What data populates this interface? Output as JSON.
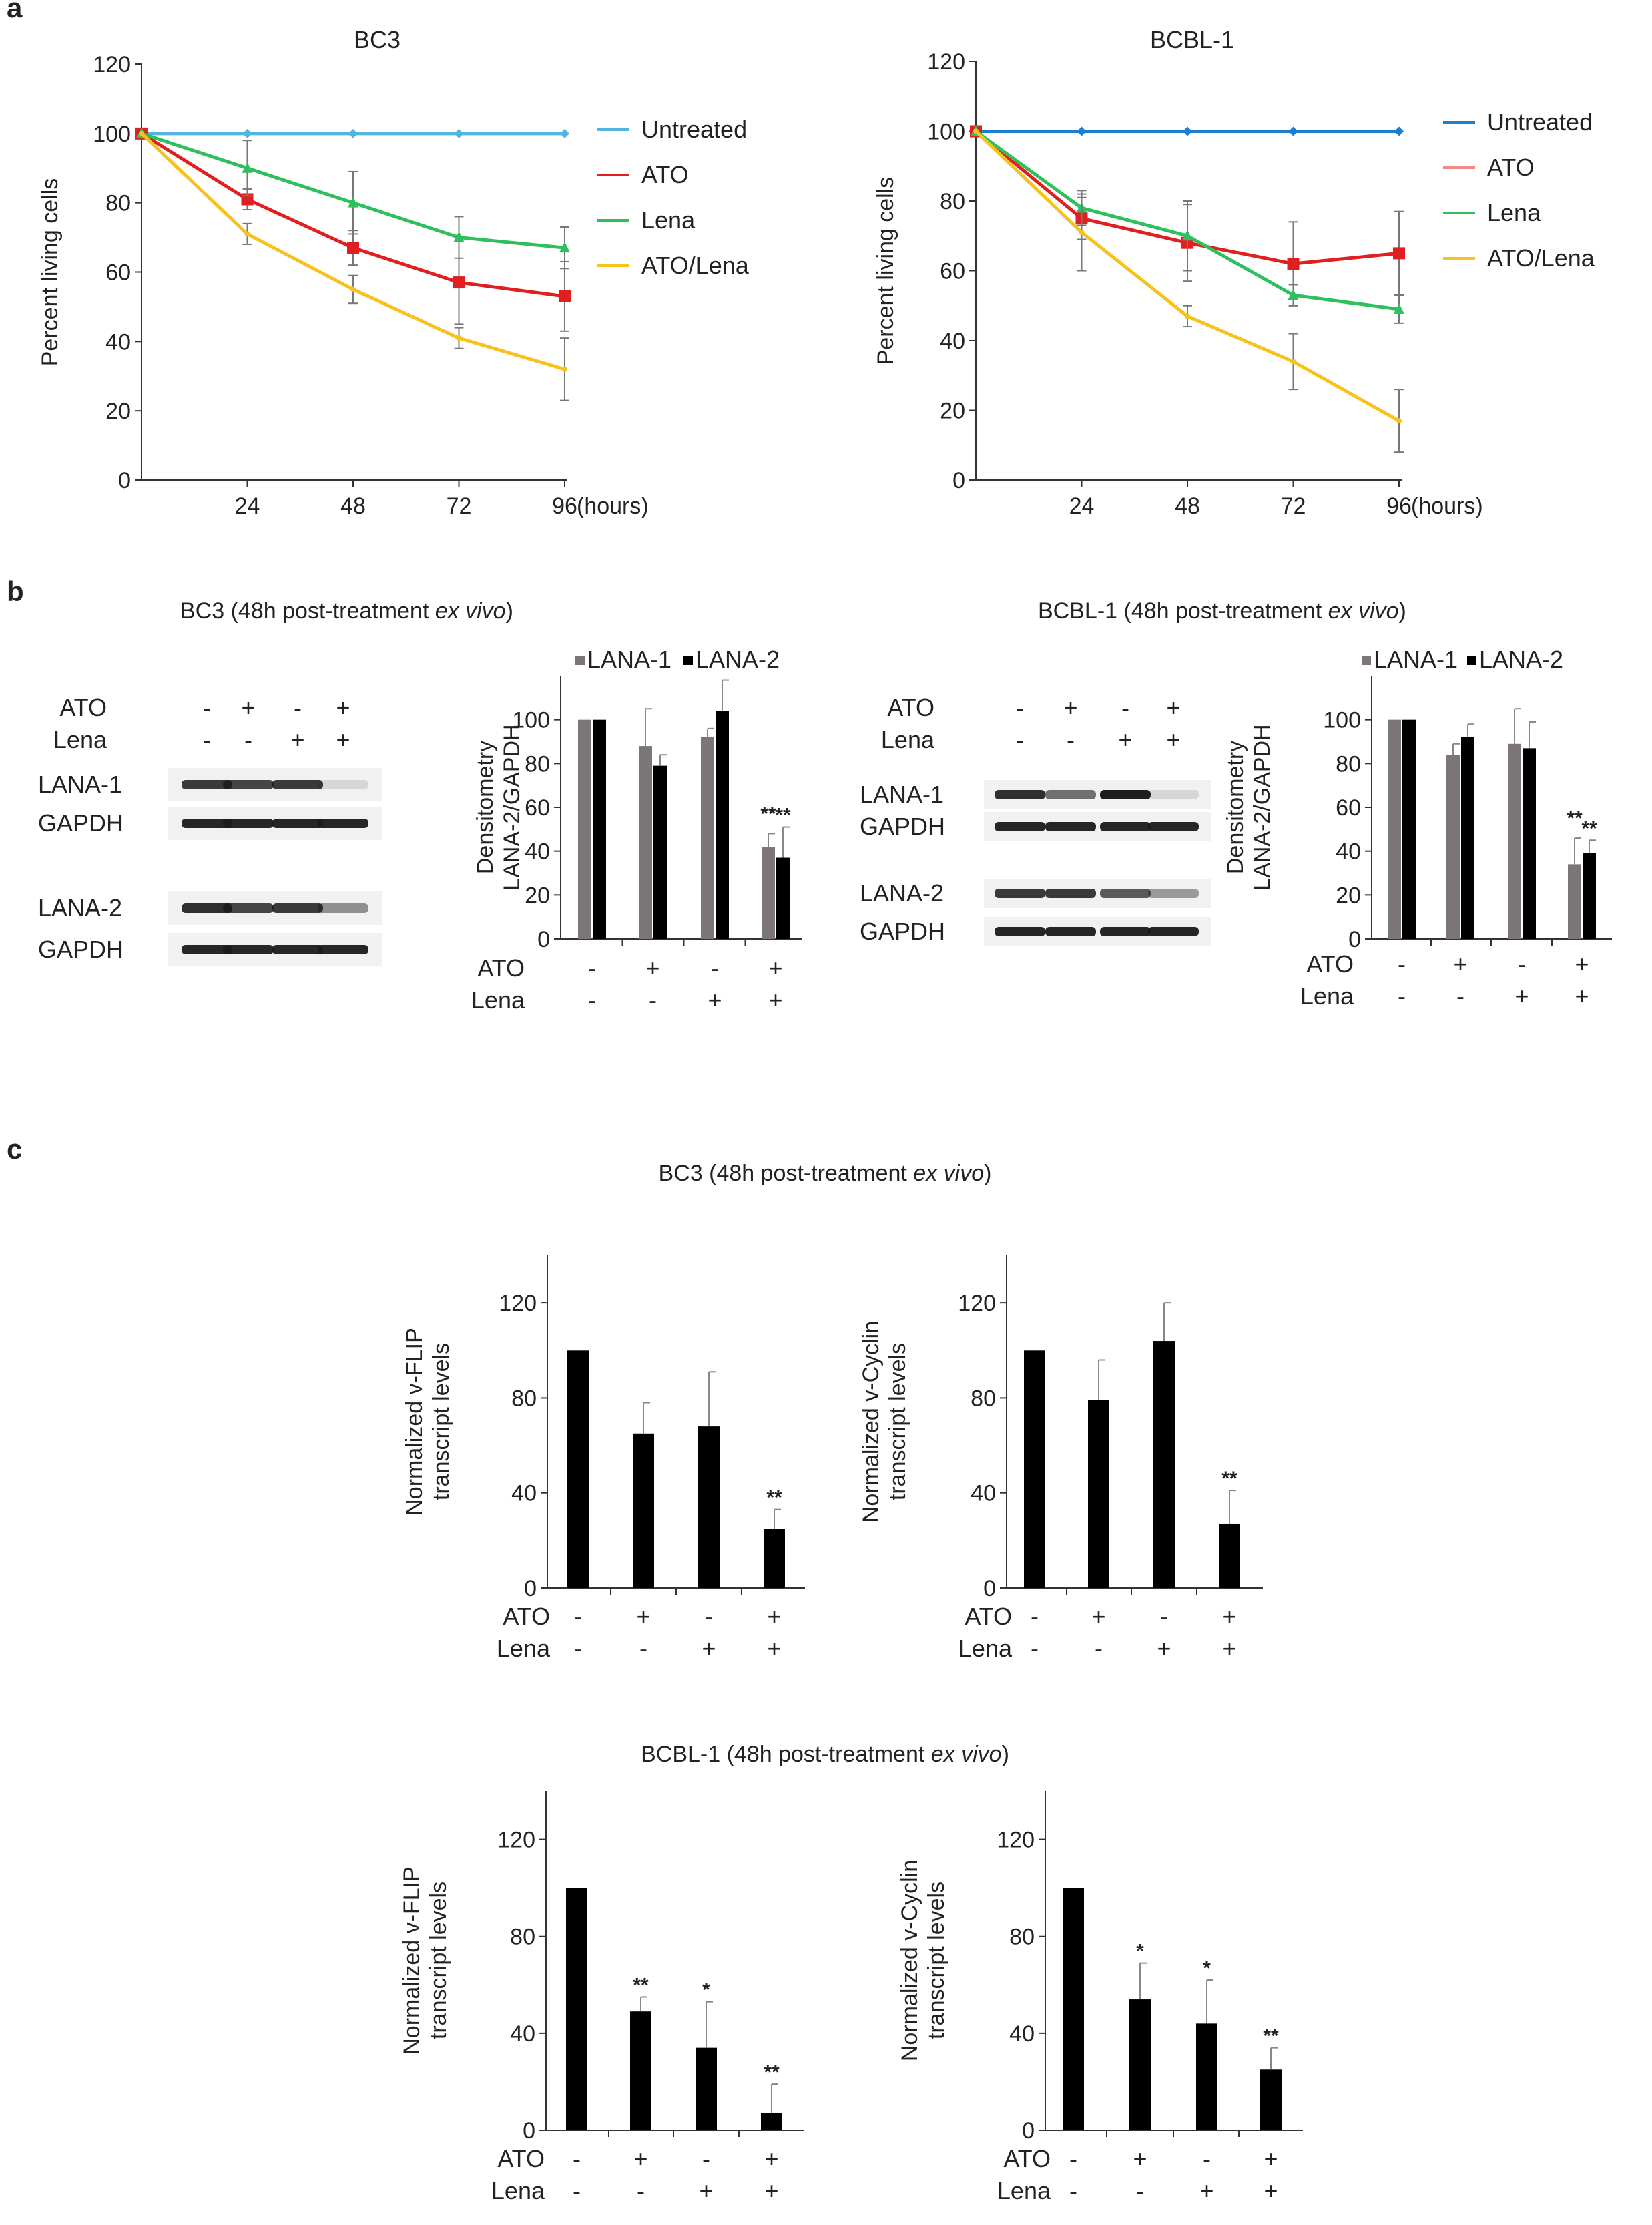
{
  "panel_labels": {
    "a": "a",
    "b": "b",
    "c": "c"
  },
  "ital": "ex vivo",
  "colors": {
    "untreated": "#52b4e0",
    "ato": "#e02020",
    "lena": "#2ec05e",
    "combo": "#f7c21b",
    "gray": "#7d7676",
    "black": "#000000",
    "blot_band": "#1a1a1a"
  },
  "chart_data": [
    {
      "id": "a1",
      "type": "line",
      "title": "BC3",
      "xlabel": "",
      "ylabel": "Percent living cells",
      "x_unit": "(hours)",
      "x": [
        0,
        24,
        48,
        72,
        96
      ],
      "xticks": [
        "24",
        "48",
        "72",
        "96"
      ],
      "ylim": [
        0,
        120
      ],
      "yticks": [
        "0",
        "20",
        "40",
        "60",
        "80",
        "100",
        "120"
      ],
      "legend": [
        "Untreated",
        "ATO",
        "Lena",
        "ATO/Lena"
      ],
      "series": [
        {
          "name": "Untreated",
          "color": "#52b4e0",
          "values": [
            100,
            100,
            100,
            100,
            100
          ],
          "err": [
            0,
            0,
            0,
            0,
            0
          ]
        },
        {
          "name": "ATO",
          "color": "#e02020",
          "values": [
            100,
            81,
            67,
            57,
            53
          ],
          "err": [
            0,
            3,
            5,
            12,
            10
          ]
        },
        {
          "name": "Lena",
          "color": "#2ec05e",
          "values": [
            100,
            90,
            80,
            70,
            67
          ],
          "err": [
            0,
            8,
            9,
            6,
            6
          ]
        },
        {
          "name": "ATO/Lena",
          "color": "#f7c21b",
          "values": [
            100,
            71,
            55,
            41,
            32
          ],
          "err": [
            0,
            3,
            4,
            3,
            9
          ]
        }
      ]
    },
    {
      "id": "a2",
      "type": "line",
      "title": "BCBL-1",
      "xlabel": "",
      "ylabel": "Percent living cells",
      "x_unit": "(hours)",
      "x": [
        0,
        24,
        48,
        72,
        96
      ],
      "xticks": [
        "24",
        "48",
        "72",
        "96"
      ],
      "ylim": [
        0,
        120
      ],
      "yticks": [
        "0",
        "20",
        "40",
        "60",
        "80",
        "100",
        "120"
      ],
      "legend": [
        "Untreated",
        "ATO",
        "Lena",
        "ATO/Lena"
      ],
      "legend_colors": [
        "#1a7fd0",
        "#f28a8a",
        "#2ec05e",
        "#f7c21b"
      ],
      "series": [
        {
          "name": "Untreated",
          "color": "#1a7fd0",
          "values": [
            100,
            100,
            100,
            100,
            100
          ],
          "err": [
            0,
            0,
            0,
            0,
            0
          ]
        },
        {
          "name": "ATO",
          "color": "#e02020",
          "values": [
            100,
            75,
            68,
            62,
            65
          ],
          "err": [
            0,
            6,
            11,
            12,
            12
          ]
        },
        {
          "name": "Lena",
          "color": "#2ec05e",
          "values": [
            100,
            78,
            70,
            53,
            49
          ],
          "err": [
            0,
            5,
            10,
            3,
            4
          ]
        },
        {
          "name": "ATO/Lena",
          "color": "#f7c21b",
          "values": [
            100,
            71,
            47,
            34,
            17
          ],
          "err": [
            0,
            11,
            3,
            8,
            9
          ]
        }
      ]
    },
    {
      "id": "b1",
      "type": "bar",
      "title": "",
      "ylabel": "Densitometry",
      "ylabel2": "LANA-2/GAPDH",
      "ylim": [
        0,
        120
      ],
      "yticks": [
        "0",
        "20",
        "40",
        "60",
        "80",
        "100"
      ],
      "categories": [
        "ATO-/Lena-",
        "ATO+/Lena-",
        "ATO-/Lena+",
        "ATO+/Lena+"
      ],
      "row_labels": [
        "ATO",
        "Lena"
      ],
      "signs": [
        [
          "-",
          "+",
          "-",
          "+"
        ],
        [
          "-",
          "-",
          "+",
          "+"
        ]
      ],
      "legend": [
        "LANA-1",
        "LANA-2"
      ],
      "series": [
        {
          "name": "LANA-1",
          "color": "#7d7676",
          "values": [
            100,
            88,
            92,
            42
          ],
          "err": [
            0,
            17,
            4,
            6
          ],
          "stars": [
            "",
            "",
            "",
            "**"
          ]
        },
        {
          "name": "LANA-2",
          "color": "#000000",
          "values": [
            100,
            79,
            104,
            37
          ],
          "err": [
            0,
            5,
            14,
            14
          ],
          "stars": [
            "",
            "",
            "",
            "**"
          ]
        }
      ]
    },
    {
      "id": "b2",
      "type": "bar",
      "title": "",
      "ylabel": "Densitometry",
      "ylabel2": "LANA-2/GAPDH",
      "ylim": [
        0,
        120
      ],
      "yticks": [
        "0",
        "20",
        "40",
        "60",
        "80",
        "100"
      ],
      "categories": [
        "ATO-/Lena-",
        "ATO+/Lena-",
        "ATO-/Lena+",
        "ATO+/Lena+"
      ],
      "row_labels": [
        "ATO",
        "Lena"
      ],
      "signs": [
        [
          "-",
          "+",
          "-",
          "+"
        ],
        [
          "-",
          "-",
          "+",
          "+"
        ]
      ],
      "legend": [
        "LANA-1",
        "LANA-2"
      ],
      "series": [
        {
          "name": "LANA-1",
          "color": "#7d7676",
          "values": [
            100,
            84,
            89,
            34
          ],
          "err": [
            0,
            5,
            16,
            12
          ],
          "stars": [
            "",
            "",
            "",
            "**"
          ]
        },
        {
          "name": "LANA-2",
          "color": "#000000",
          "values": [
            100,
            92,
            87,
            39
          ],
          "err": [
            0,
            6,
            12,
            6
          ],
          "stars": [
            "",
            "",
            "",
            "**"
          ]
        }
      ]
    },
    {
      "id": "c1",
      "type": "bar",
      "title": "",
      "ylabel": "Normalized v-FLIP",
      "ylabel2": "transcript levels",
      "ylim": [
        0,
        140
      ],
      "yticks": [
        "0",
        "40",
        "80",
        "120"
      ],
      "categories": [
        "ATO-/Lena-",
        "ATO+/Lena-",
        "ATO-/Lena+",
        "ATO+/Lena+"
      ],
      "row_labels": [
        "ATO",
        "Lena"
      ],
      "signs": [
        [
          "-",
          "+",
          "-",
          "+"
        ],
        [
          "-",
          "-",
          "+",
          "+"
        ]
      ],
      "series": [
        {
          "name": "v-FLIP",
          "color": "#000000",
          "values": [
            100,
            65,
            68,
            25
          ],
          "err": [
            0,
            13,
            23,
            8
          ],
          "stars": [
            "",
            "",
            "",
            "**"
          ]
        }
      ]
    },
    {
      "id": "c2",
      "type": "bar",
      "title": "",
      "ylabel": "Normalized v-Cyclin",
      "ylabel2": "transcript levels",
      "ylim": [
        0,
        140
      ],
      "yticks": [
        "0",
        "40",
        "80",
        "120"
      ],
      "categories": [
        "ATO-/Lena-",
        "ATO+/Lena-",
        "ATO-/Lena+",
        "ATO+/Lena+"
      ],
      "row_labels": [
        "ATO",
        "Lena"
      ],
      "signs": [
        [
          "-",
          "+",
          "-",
          "+"
        ],
        [
          "-",
          "-",
          "+",
          "+"
        ]
      ],
      "series": [
        {
          "name": "v-Cyclin",
          "color": "#000000",
          "values": [
            100,
            79,
            104,
            27
          ],
          "err": [
            0,
            17,
            16,
            14
          ],
          "stars": [
            "",
            "",
            "",
            "**"
          ]
        }
      ]
    },
    {
      "id": "c3",
      "type": "bar",
      "title": "",
      "ylabel": "Normalized v-FLIP",
      "ylabel2": "transcript levels",
      "ylim": [
        0,
        140
      ],
      "yticks": [
        "0",
        "40",
        "80",
        "120"
      ],
      "categories": [
        "ATO-/Lena-",
        "ATO+/Lena-",
        "ATO-/Lena+",
        "ATO+/Lena+"
      ],
      "row_labels": [
        "ATO",
        "Lena"
      ],
      "signs": [
        [
          "-",
          "+",
          "-",
          "+"
        ],
        [
          "-",
          "-",
          "+",
          "+"
        ]
      ],
      "series": [
        {
          "name": "v-FLIP",
          "color": "#000000",
          "values": [
            100,
            49,
            34,
            7
          ],
          "err": [
            0,
            6,
            19,
            12
          ],
          "stars": [
            "",
            "**",
            "*",
            "**"
          ]
        }
      ]
    },
    {
      "id": "c4",
      "type": "bar",
      "title": "",
      "ylabel": "Normalized v-Cyclin",
      "ylabel2": "transcript levels",
      "ylim": [
        0,
        140
      ],
      "yticks": [
        "0",
        "40",
        "80",
        "120"
      ],
      "categories": [
        "ATO-/Lena-",
        "ATO+/Lena-",
        "ATO-/Lena+",
        "ATO+/Lena+"
      ],
      "row_labels": [
        "ATO",
        "Lena"
      ],
      "signs": [
        [
          "-",
          "+",
          "-",
          "+"
        ],
        [
          "-",
          "-",
          "+",
          "+"
        ]
      ],
      "series": [
        {
          "name": "v-Cyclin",
          "color": "#000000",
          "values": [
            100,
            54,
            44,
            25
          ],
          "err": [
            0,
            15,
            18,
            9
          ],
          "stars": [
            "",
            "*",
            "*",
            "**"
          ]
        }
      ]
    }
  ],
  "blots": [
    {
      "title_plain": "BC3 (48h post-treatment ",
      "title_close": ")",
      "rows": [
        "ATO",
        "Lena"
      ],
      "signs": [
        [
          "-",
          "+",
          "-",
          "+"
        ],
        [
          "-",
          "-",
          "+",
          "+"
        ]
      ],
      "bands": [
        {
          "label": "LANA-1",
          "intensity": [
            0.85,
            0.8,
            0.85,
            0.12
          ]
        },
        {
          "label": "GAPDH",
          "intensity": [
            0.95,
            0.95,
            0.95,
            0.95
          ]
        },
        {
          "label": "LANA-2",
          "intensity": [
            0.9,
            0.8,
            0.85,
            0.45
          ]
        },
        {
          "label": "GAPDH",
          "intensity": [
            0.95,
            0.95,
            0.95,
            0.95
          ]
        }
      ]
    },
    {
      "title_plain": "BCBL-1 (48h post-treatment ",
      "title_close": ")",
      "rows": [
        "ATO",
        "Lena"
      ],
      "signs": [
        [
          "-",
          "+",
          "-",
          "+"
        ],
        [
          "-",
          "-",
          "+",
          "+"
        ]
      ],
      "bands": [
        {
          "label": "LANA-1",
          "intensity": [
            0.9,
            0.6,
            0.98,
            0.12
          ]
        },
        {
          "label": "GAPDH",
          "intensity": [
            0.95,
            0.95,
            0.95,
            0.95
          ]
        },
        {
          "label": "LANA-2",
          "intensity": [
            0.85,
            0.85,
            0.7,
            0.4
          ]
        },
        {
          "label": "GAPDH",
          "intensity": [
            0.95,
            0.95,
            0.95,
            0.95
          ]
        }
      ]
    }
  ],
  "section_c": {
    "bc3_plain": "BC3 (48h post-treatment ",
    "bc3_close": ")",
    "bcbl_plain": "BCBL-1 (48h post-treatment ",
    "bcbl_close": ")"
  }
}
